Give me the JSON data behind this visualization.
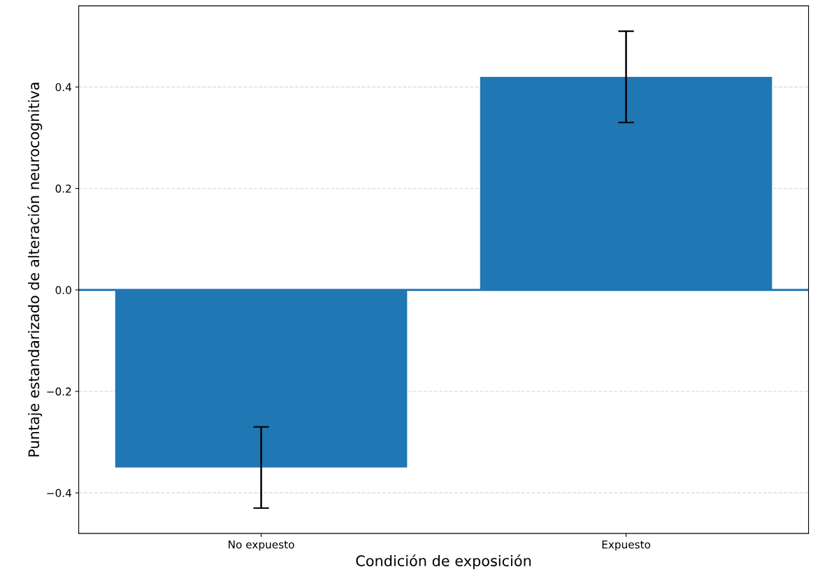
{
  "chart_data": {
    "type": "bar",
    "xlabel": "Condición de exposición",
    "ylabel": "Puntaje estandarizado de alteración neurocognitiva",
    "categories": [
      "No expuesto",
      "Expuesto"
    ],
    "values": [
      -0.35,
      0.42
    ],
    "errors": [
      [
        -0.43,
        -0.27
      ],
      [
        0.33,
        0.51
      ]
    ],
    "color": "#1f77b4",
    "ylim": [
      -0.48,
      0.56
    ],
    "yticks": [
      {
        "value": -0.4,
        "label": "−0.4"
      },
      {
        "value": -0.2,
        "label": "−0.2"
      },
      {
        "value": 0,
        "label": "0.0"
      },
      0.2,
      0.4
    ],
    "ref_lines": [
      {
        "axis": "y",
        "value": 0,
        "color": "#1f77b4"
      }
    ],
    "grid": "y"
  }
}
